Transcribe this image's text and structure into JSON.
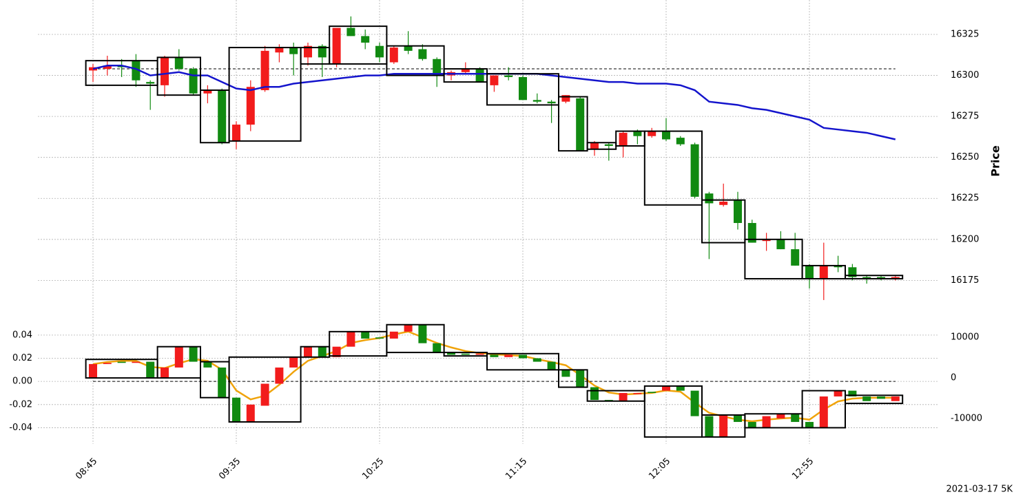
{
  "chart_data": [
    {
      "type": "candlestick",
      "y_label": "Price",
      "up_color": "#f21c1c",
      "down_color": "#118a11",
      "open": [
        16303,
        16304,
        16306,
        16309,
        16296,
        16294,
        16311,
        16304,
        16289,
        16291,
        16260,
        16270,
        16291,
        16314,
        16317,
        16311,
        16318,
        16307,
        16329,
        16324,
        16318,
        16308,
        16318,
        16316,
        16310,
        16300,
        16302,
        16304,
        16294,
        16300,
        16299,
        16285,
        16284,
        16284,
        16286,
        16255,
        16258,
        16257,
        16266,
        16263,
        16266,
        16262,
        16258,
        16228,
        16221,
        16224,
        16210,
        16199,
        16200,
        16194,
        16184,
        16176,
        16184,
        16183,
        16177,
        16177,
        16176
      ],
      "high": [
        16307,
        16312,
        16310,
        16313,
        16297,
        16312,
        16316,
        16305,
        16294,
        16292,
        16272,
        16297,
        16318,
        16319,
        16320,
        16320,
        16319,
        16329,
        16336,
        16328,
        16320,
        16318,
        16327,
        16319,
        16311,
        16303,
        16308,
        16305,
        16300,
        16305,
        16300,
        16289,
        16285,
        16288,
        16287,
        16260,
        16259,
        16266,
        16267,
        16268,
        16274,
        16263,
        16259,
        16229,
        16234,
        16229,
        16212,
        16204,
        16205,
        16204,
        16185,
        16198,
        16190,
        16185,
        16178,
        16178,
        16178
      ],
      "low": [
        16296,
        16300,
        16299,
        16293,
        16279,
        16287,
        16303,
        16288,
        16283,
        16258,
        16255,
        16266,
        16290,
        16308,
        16300,
        16306,
        16299,
        16305,
        16324,
        16316,
        16308,
        16307,
        16313,
        16309,
        16293,
        16297,
        16301,
        16296,
        16290,
        16297,
        16285,
        16283,
        16271,
        16283,
        16254,
        16251,
        16248,
        16250,
        16258,
        16262,
        16260,
        16257,
        16225,
        16188,
        16220,
        16206,
        16198,
        16193,
        16194,
        16184,
        16170,
        16163,
        16180,
        16175,
        16173,
        16175,
        16175
      ],
      "close": [
        16305,
        16306,
        16305,
        16297,
        16295,
        16311,
        16304,
        16289,
        16291,
        16259,
        16270,
        16293,
        16315,
        16317,
        16313,
        16318,
        16311,
        16329,
        16324,
        16320,
        16311,
        16317,
        16315,
        16310,
        16300,
        16302,
        16304,
        16296,
        16300,
        16299,
        16285,
        16284,
        16283,
        16288,
        16254,
        16259,
        16257,
        16265,
        16263,
        16266,
        16261,
        16258,
        16226,
        16222,
        16223,
        16210,
        16198,
        16200,
        16194,
        16184,
        16176,
        16184,
        16183,
        16177,
        16176,
        16176,
        16177
      ],
      "ma": {
        "color": "#1414cc",
        "values": [
          16304,
          16306,
          16306,
          16304,
          16300,
          16301,
          16302,
          16300,
          16300,
          16296,
          16292,
          16291,
          16293,
          16293,
          16295,
          16296,
          16297,
          16298,
          16299,
          16300,
          16300,
          16301,
          16301,
          16301,
          16301,
          16301,
          16301,
          16301,
          16301,
          16301,
          16301,
          16301,
          16300,
          16299,
          16298,
          16297,
          16296,
          16296,
          16295,
          16295,
          16295,
          16294,
          16291,
          16284,
          16283,
          16282,
          16280,
          16279,
          16277,
          16275,
          16273,
          16268,
          16267,
          16266,
          16265,
          16263,
          16261
        ]
      },
      "hline": 16304,
      "boxes": [
        {
          "start": 0,
          "end": 4,
          "low": 16294,
          "high": 16309
        },
        {
          "start": 5,
          "end": 7,
          "low": 16288,
          "high": 16311
        },
        {
          "start": 8,
          "end": 9,
          "low": 16259,
          "high": 16291
        },
        {
          "start": 10,
          "end": 14,
          "low": 16260,
          "high": 16317
        },
        {
          "start": 15,
          "end": 16,
          "low": 16307,
          "high": 16317
        },
        {
          "start": 17,
          "end": 20,
          "low": 16307,
          "high": 16330
        },
        {
          "start": 21,
          "end": 24,
          "low": 16300,
          "high": 16318
        },
        {
          "start": 25,
          "end": 27,
          "low": 16296,
          "high": 16304
        },
        {
          "start": 28,
          "end": 32,
          "low": 16282,
          "high": 16301
        },
        {
          "start": 33,
          "end": 34,
          "low": 16254,
          "high": 16287
        },
        {
          "start": 35,
          "end": 36,
          "low": 16255,
          "high": 16259
        },
        {
          "start": 37,
          "end": 38,
          "low": 16257,
          "high": 16266
        },
        {
          "start": 39,
          "end": 42,
          "low": 16221,
          "high": 16266
        },
        {
          "start": 43,
          "end": 45,
          "low": 16198,
          "high": 16224
        },
        {
          "start": 46,
          "end": 49,
          "low": 16176,
          "high": 16200
        },
        {
          "start": 50,
          "end": 52,
          "low": 16176,
          "high": 16184
        },
        {
          "start": 53,
          "end": 56,
          "low": 16176,
          "high": 16178
        }
      ],
      "ylim": [
        16155,
        16346
      ],
      "yticks": [
        16175,
        16200,
        16225,
        16250,
        16275,
        16300,
        16325
      ],
      "grid": true
    },
    {
      "type": "candlestick",
      "up_color": "#f21c1c",
      "down_color": "#118a11",
      "categories": [
        "08:45",
        null,
        null,
        null,
        null,
        null,
        null,
        null,
        null,
        null,
        "09:35",
        null,
        null,
        null,
        null,
        null,
        null,
        null,
        null,
        null,
        "10:25",
        null,
        null,
        null,
        null,
        null,
        null,
        null,
        null,
        null,
        "11:15",
        null,
        null,
        null,
        null,
        null,
        null,
        null,
        null,
        null,
        "12:05",
        null,
        null,
        null,
        null,
        null,
        null,
        null,
        null,
        null,
        "12:55",
        null,
        null,
        null,
        null,
        null,
        null
      ],
      "open": [
        0.003,
        0.015,
        0.017,
        0.016,
        0.017,
        0.003,
        0.012,
        0.03,
        0.017,
        0.012,
        -0.014,
        -0.035,
        -0.021,
        -0.002,
        0.012,
        0.021,
        0.03,
        0.021,
        0.03,
        0.043,
        0.038,
        0.037,
        0.043,
        0.049,
        0.033,
        0.025,
        0.024,
        0.023,
        0.023,
        0.021,
        0.023,
        0.02,
        0.017,
        0.01,
        0.01,
        -0.005,
        -0.016,
        -0.017,
        -0.011,
        -0.009,
        -0.008,
        -0.004,
        -0.008,
        -0.03,
        -0.048,
        -0.029,
        -0.035,
        -0.04,
        -0.032,
        -0.028,
        -0.035,
        -0.04,
        -0.013,
        -0.008,
        -0.013,
        -0.013,
        -0.017
      ],
      "close": [
        0.015,
        0.016,
        0.016,
        0.017,
        0.003,
        0.012,
        0.03,
        0.017,
        0.012,
        -0.014,
        -0.035,
        -0.02,
        -0.002,
        0.012,
        0.021,
        0.03,
        0.021,
        0.03,
        0.043,
        0.037,
        0.037,
        0.043,
        0.049,
        0.033,
        0.025,
        0.023,
        0.023,
        0.024,
        0.021,
        0.023,
        0.02,
        0.017,
        0.01,
        0.004,
        -0.005,
        -0.016,
        -0.017,
        -0.01,
        -0.01,
        -0.01,
        -0.004,
        -0.008,
        -0.03,
        -0.048,
        -0.029,
        -0.035,
        -0.04,
        -0.03,
        -0.028,
        -0.035,
        -0.04,
        -0.013,
        -0.008,
        -0.013,
        -0.017,
        -0.015,
        -0.013
      ],
      "series": [
        {
          "axis": "y2",
          "color": "#f0a30a",
          "values": [
            3400,
            3900,
            4200,
            4200,
            2700,
            2400,
            3600,
            4600,
            4200,
            2000,
            -3100,
            -5300,
            -4400,
            -1700,
            1500,
            4200,
            5400,
            6600,
            8600,
            9300,
            9800,
            10700,
            11400,
            10000,
            8600,
            7500,
            6600,
            6100,
            5800,
            5600,
            5400,
            4600,
            3900,
            3100,
            700,
            -1900,
            -3600,
            -4100,
            -3900,
            -3700,
            -3100,
            -3400,
            -6100,
            -8600,
            -9500,
            -10300,
            -10700,
            -10300,
            -10000,
            -9800,
            -10300,
            -7800,
            -5800,
            -5100,
            -4900,
            -4900,
            -4900
          ]
        }
      ],
      "hline": 0,
      "boxes": [
        {
          "start": 0,
          "end": 4,
          "low": 0.003,
          "high": 0.019
        },
        {
          "start": 5,
          "end": 7,
          "low": 0.003,
          "high": 0.03
        },
        {
          "start": 8,
          "end": 9,
          "low": -0.014,
          "high": 0.017
        },
        {
          "start": 10,
          "end": 14,
          "low": -0.035,
          "high": 0.021
        },
        {
          "start": 15,
          "end": 16,
          "low": 0.021,
          "high": 0.03
        },
        {
          "start": 17,
          "end": 20,
          "low": 0.022,
          "high": 0.043
        },
        {
          "start": 21,
          "end": 24,
          "low": 0.025,
          "high": 0.049
        },
        {
          "start": 25,
          "end": 27,
          "low": 0.022,
          "high": 0.025
        },
        {
          "start": 28,
          "end": 32,
          "low": 0.01,
          "high": 0.024
        },
        {
          "start": 33,
          "end": 34,
          "low": -0.005,
          "high": 0.01
        },
        {
          "start": 35,
          "end": 38,
          "low": -0.017,
          "high": -0.008
        },
        {
          "start": 39,
          "end": 42,
          "low": -0.048,
          "high": -0.004
        },
        {
          "start": 43,
          "end": 45,
          "low": -0.048,
          "high": -0.029
        },
        {
          "start": 46,
          "end": 49,
          "low": -0.04,
          "high": -0.028
        },
        {
          "start": 50,
          "end": 52,
          "low": -0.04,
          "high": -0.008
        },
        {
          "start": 53,
          "end": 56,
          "low": -0.019,
          "high": -0.012
        }
      ],
      "ylim": [
        -0.054,
        0.053
      ],
      "yticks": [
        -0.04,
        -0.02,
        {
          "value": 0,
          "label": "0.00"
        },
        0.02,
        0.04
      ],
      "y2lim": [
        -16270,
        14240
      ],
      "y2ticks": [
        -10000,
        0,
        10000
      ],
      "grid": true,
      "footnote": "2021-03-17 5K"
    }
  ]
}
